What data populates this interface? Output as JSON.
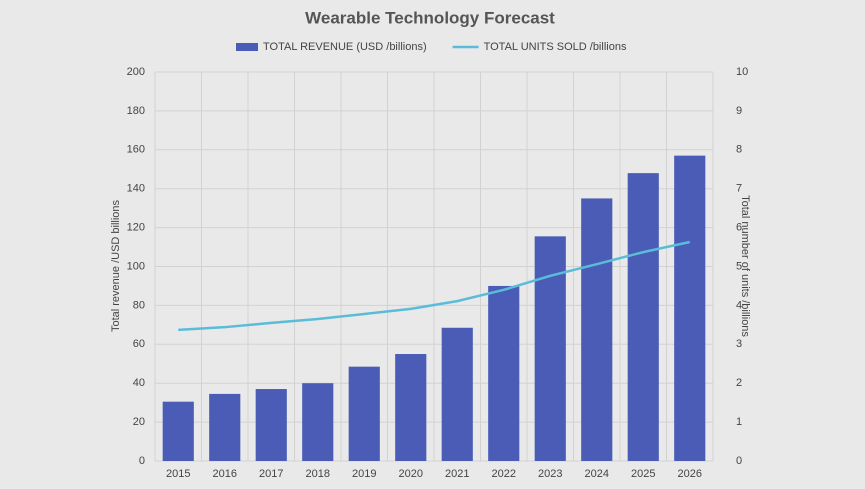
{
  "chart_data": {
    "type": "bar_line",
    "title": "Wearable Technology Forecast",
    "categories": [
      "2015",
      "2016",
      "2017",
      "2018",
      "2019",
      "2020",
      "2021",
      "2022",
      "2023",
      "2024",
      "2025",
      "2026"
    ],
    "series": [
      {
        "name": "TOTAL REVENUE (USD /billions)",
        "type": "bar",
        "color": "#4a5cb5",
        "values": [
          30.5,
          34.5,
          37,
          40,
          48.5,
          55,
          68.5,
          90,
          115.5,
          135,
          148,
          157
        ]
      },
      {
        "name": "TOTAL UNITS SOLD /billions",
        "type": "line",
        "axis": "y2",
        "color": "#5bbcd9",
        "values": [
          3.37,
          3.44,
          3.55,
          3.65,
          3.78,
          3.91,
          4.11,
          4.4,
          4.76,
          5.06,
          5.37,
          5.63
        ]
      }
    ],
    "y_label": "Total revenue /USD billions",
    "y2_label": "Total number  of units /billions",
    "ylim": [
      0,
      200
    ],
    "yticks": [
      0,
      20,
      40,
      60,
      80,
      100,
      120,
      140,
      160,
      180,
      200
    ],
    "y2lim": [
      0,
      10
    ],
    "y2ticks": [
      0,
      1,
      2,
      3,
      4,
      5,
      6,
      7,
      8,
      9,
      10
    ],
    "grid": true,
    "legend": "top"
  }
}
